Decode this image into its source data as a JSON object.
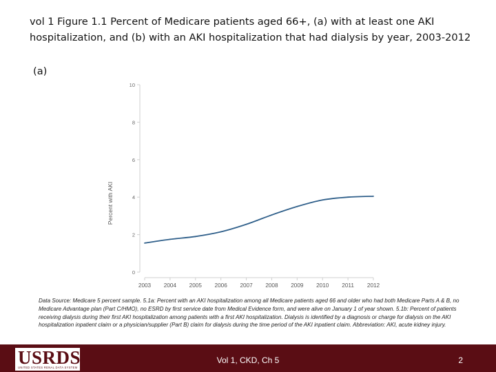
{
  "slide": {
    "title": "vol 1 Figure 1.1  Percent of Medicare patients aged 66+, (a) with at least one AKI hospitalization, and (b) with an AKI hospitalization that had dialysis by year, 2003-2012",
    "panel_label": "(a)",
    "source_note": "Data Source: Medicare 5 percent sample. 5.1a: Percent with an AKI hospitalization among all Medicare patients aged 66 and older who had both Medicare Parts A & B, no Medicare Advantage plan (Part C/HMO), no ESRD by first service date from Medical Evidence form, and were alive on January 1 of year shown. 5.1b: Percent of patients receiving dialysis during their first AKI hospitalization among patients with a first AKI hospitalization. Dialysis is identified by a diagnosis or charge for dialysis on the AKI hospitalization inpatient claim or a physician/supplier (Part B) claim for dialysis during the time period of the AKI inpatient claim. Abbreviation: AKI, acute kidney injury."
  },
  "footer": {
    "logo_text": "USRDS",
    "logo_subtext": "UNITED STATES RENAL DATA SYSTEM",
    "center_text": "Vol 1, CKD, Ch 5",
    "page_number": "2",
    "background_color": "#5a0d14"
  },
  "chart_data": {
    "type": "line",
    "title": "",
    "xlabel": "",
    "ylabel": "Percent with AKI",
    "x": [
      2003,
      2004,
      2005,
      2006,
      2007,
      2008,
      2009,
      2010,
      2011,
      2012
    ],
    "xticks": [
      "2003",
      "2004",
      "2005",
      "2006",
      "2007",
      "2008",
      "2009",
      "2010",
      "2011",
      "2012"
    ],
    "yticks": [
      "0",
      "2",
      "4",
      "6",
      "8",
      "10"
    ],
    "ylim": [
      0,
      10
    ],
    "grid": false,
    "series": [
      {
        "values": [
          1.55,
          1.75,
          1.9,
          2.15,
          2.55,
          3.05,
          3.5,
          3.85,
          4.0,
          4.05
        ],
        "color": "#2f5f8a"
      }
    ]
  }
}
